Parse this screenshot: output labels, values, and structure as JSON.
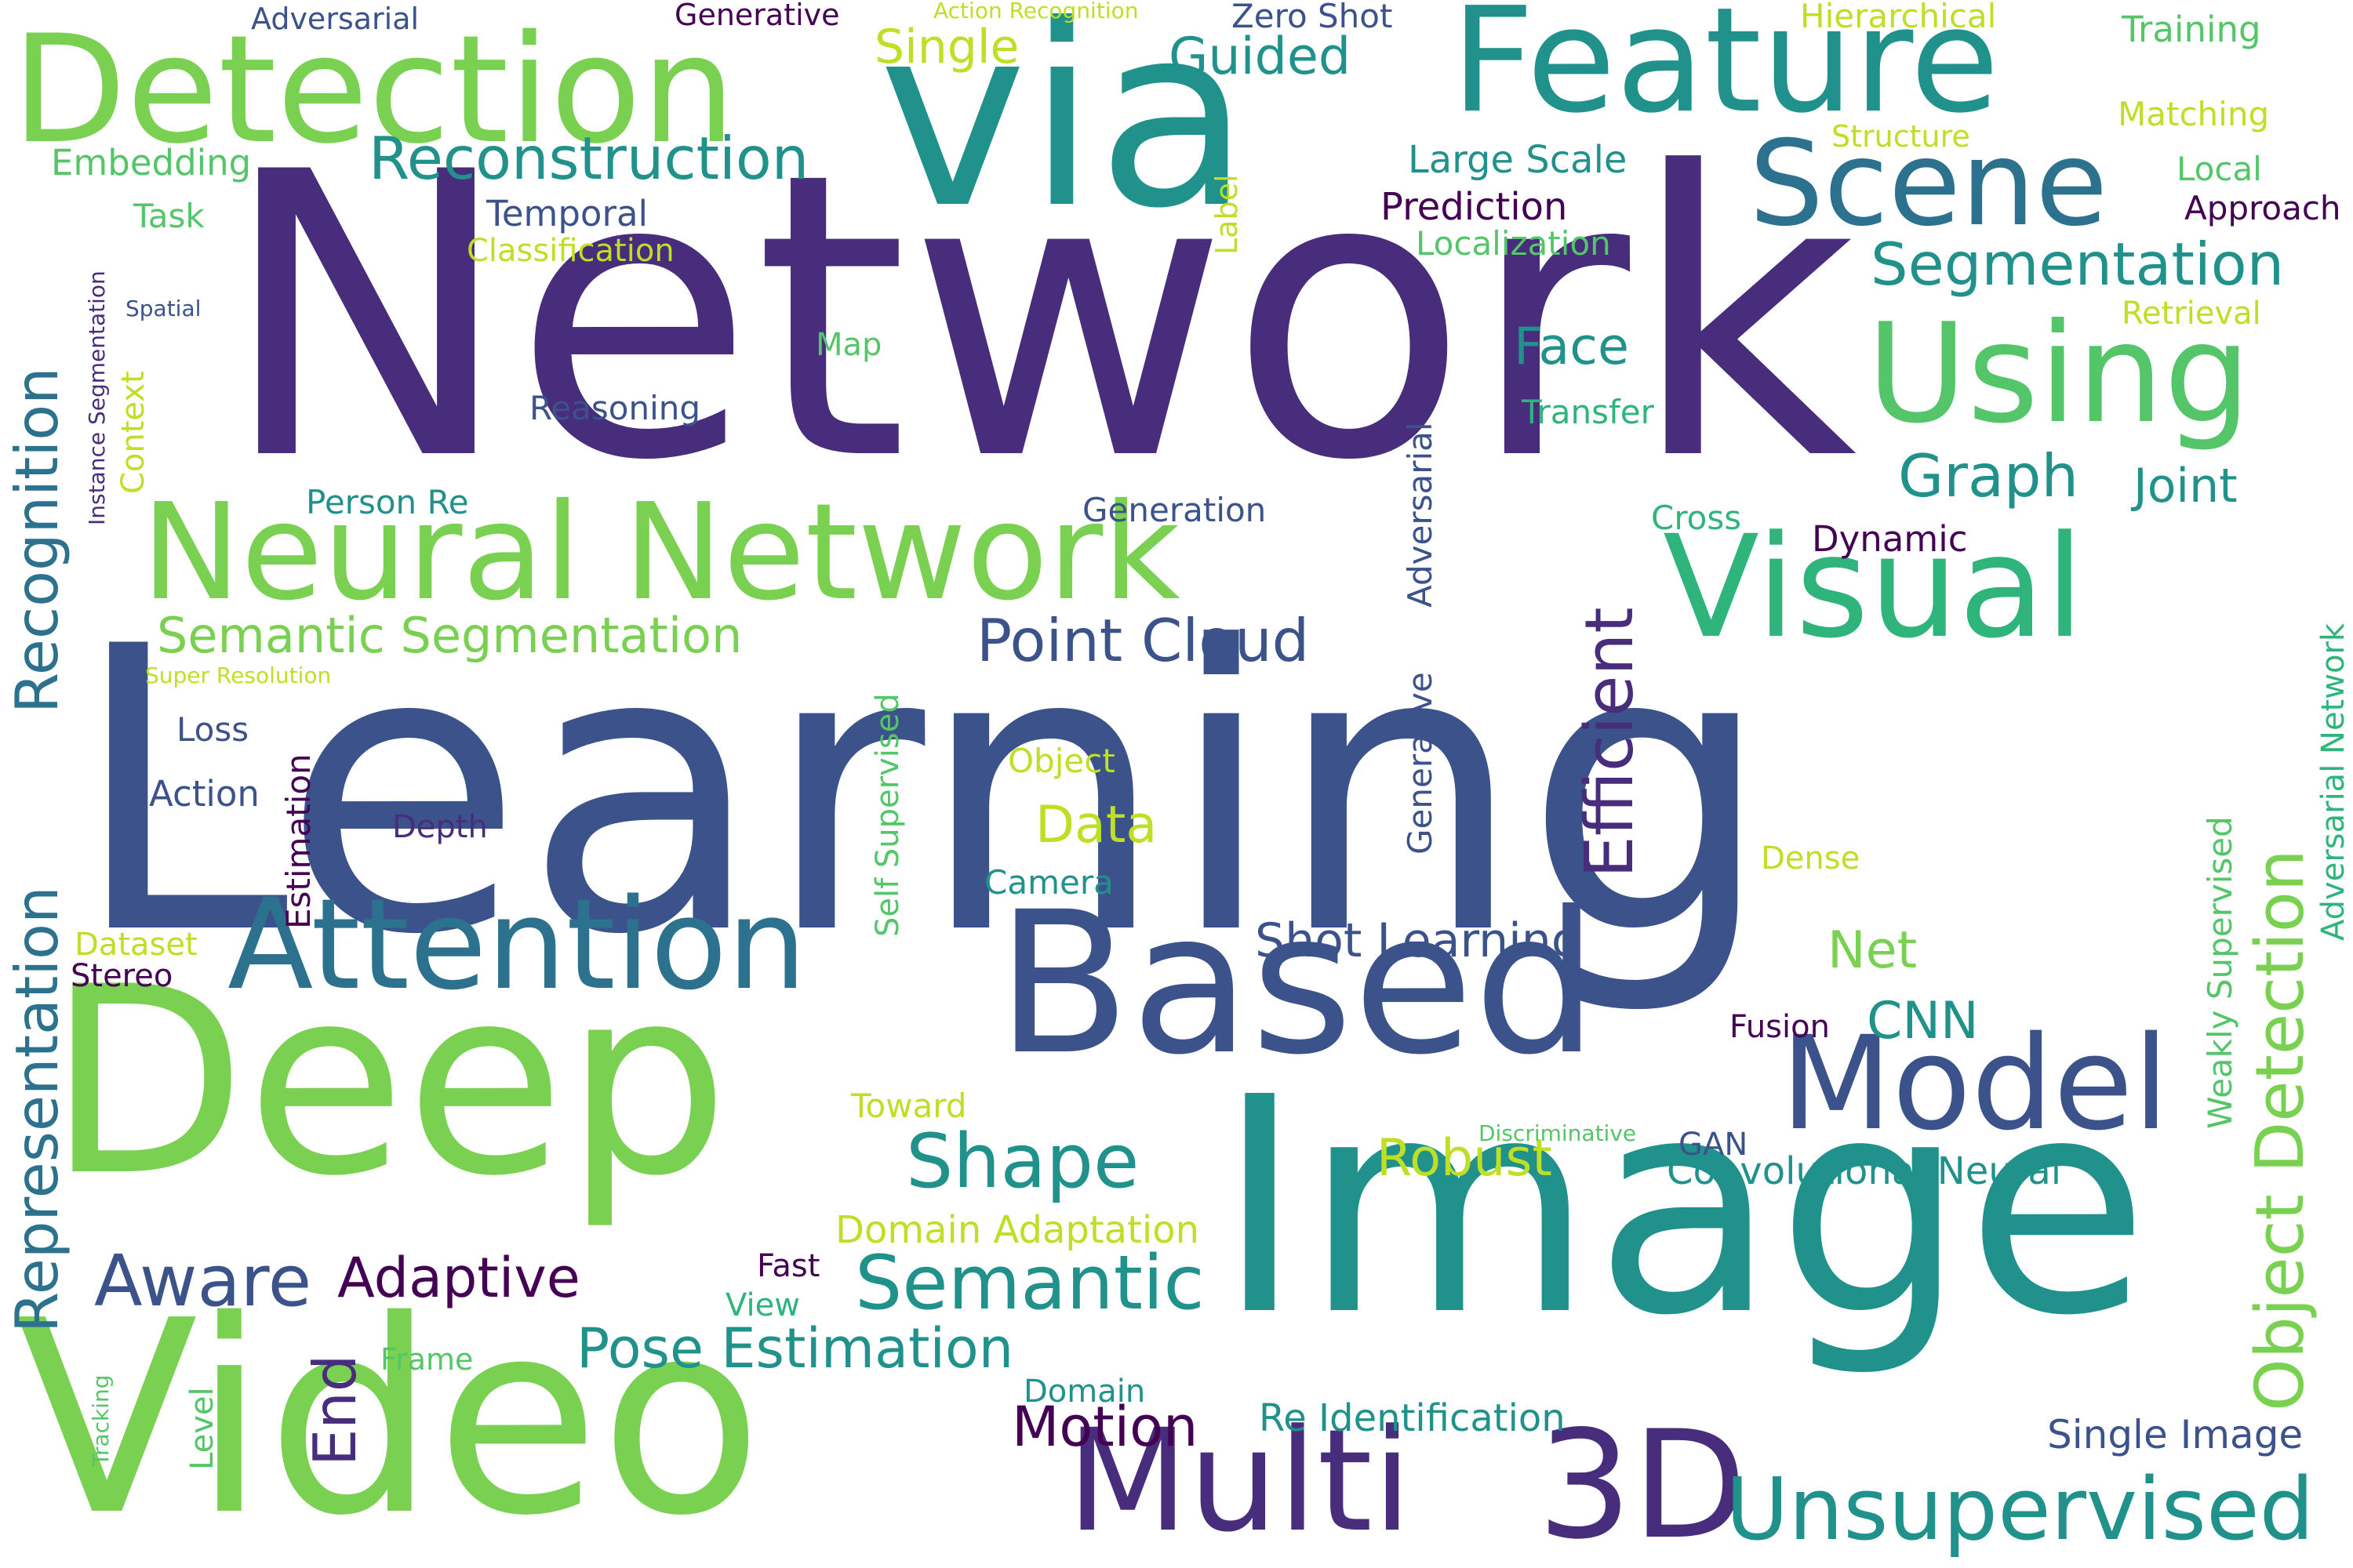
{
  "palette": {
    "lime": "#7ad151",
    "green": "#54c568",
    "teal": "#21918c",
    "blue": "#2c728e",
    "slate": "#3b528b",
    "indigo": "#472d7b",
    "purple": "#440154",
    "yellow": "#bddf26",
    "seafoam": "#2fb47c"
  },
  "words": [
    {
      "id": "network",
      "text": "Network",
      "color": "indigo"
    },
    {
      "id": "learning",
      "text": "Learning",
      "color": "slate"
    },
    {
      "id": "deep",
      "text": "Deep",
      "color": "lime"
    },
    {
      "id": "image",
      "text": "Image",
      "color": "teal"
    },
    {
      "id": "video",
      "text": "Video",
      "color": "lime"
    },
    {
      "id": "via",
      "text": "via",
      "color": "teal"
    },
    {
      "id": "based",
      "text": "Based",
      "color": "slate"
    },
    {
      "id": "detection",
      "text": "Detection",
      "color": "lime"
    },
    {
      "id": "feature",
      "text": "Feature",
      "color": "teal"
    },
    {
      "id": "neural-network",
      "text": "Neural Network",
      "color": "lime"
    },
    {
      "id": "using",
      "text": "Using",
      "color": "green"
    },
    {
      "id": "visual",
      "text": "Visual",
      "color": "seafoam"
    },
    {
      "id": "attention",
      "text": "Attention",
      "color": "blue"
    },
    {
      "id": "model",
      "text": "Model",
      "color": "slate"
    },
    {
      "id": "scene",
      "text": "Scene",
      "color": "blue"
    },
    {
      "id": "multi",
      "text": "Multi",
      "color": "indigo"
    },
    {
      "id": "3d",
      "text": "3D",
      "color": "indigo"
    },
    {
      "id": "unsupervised",
      "text": "Unsupervised",
      "color": "teal"
    },
    {
      "id": "semantic",
      "text": "Semantic",
      "color": "teal"
    },
    {
      "id": "shape",
      "text": "Shape",
      "color": "teal"
    },
    {
      "id": "aware",
      "text": "Aware",
      "color": "slate"
    },
    {
      "id": "adaptive",
      "text": "Adaptive",
      "color": "purple"
    },
    {
      "id": "reconstruction",
      "text": "Reconstruction",
      "color": "teal"
    },
    {
      "id": "segmentation",
      "text": "Segmentation",
      "color": "teal"
    },
    {
      "id": "point-cloud",
      "text": "Point Cloud",
      "color": "slate"
    },
    {
      "id": "pose-estimation",
      "text": "Pose Estimation",
      "color": "teal"
    },
    {
      "id": "motion",
      "text": "Motion",
      "color": "purple"
    },
    {
      "id": "semantic-segmentation",
      "text": "Semantic Segmentation",
      "color": "lime"
    },
    {
      "id": "guided",
      "text": "Guided",
      "color": "teal"
    },
    {
      "id": "graph",
      "text": "Graph",
      "color": "teal"
    },
    {
      "id": "face",
      "text": "Face",
      "color": "teal"
    },
    {
      "id": "joint",
      "text": "Joint",
      "color": "teal"
    },
    {
      "id": "shot-learning",
      "text": "Shot Learning",
      "color": "slate"
    },
    {
      "id": "robust",
      "text": "Robust",
      "color": "yellow"
    },
    {
      "id": "single",
      "text": "Single",
      "color": "yellow"
    },
    {
      "id": "data",
      "text": "Data",
      "color": "yellow"
    },
    {
      "id": "net",
      "text": "Net",
      "color": "lime"
    },
    {
      "id": "cnn",
      "text": "CNN",
      "color": "teal"
    },
    {
      "id": "single-image",
      "text": "Single Image",
      "color": "slate"
    },
    {
      "id": "re-identification",
      "text": "Re Identification",
      "color": "teal"
    },
    {
      "id": "convolutional-neural",
      "text": "Convolutional Neural",
      "color": "teal"
    },
    {
      "id": "domain-adaptation",
      "text": "Domain Adaptation",
      "color": "yellow"
    },
    {
      "id": "large-scale",
      "text": "Large Scale",
      "color": "teal"
    },
    {
      "id": "prediction",
      "text": "Prediction",
      "color": "purple"
    },
    {
      "id": "localization",
      "text": "Localization",
      "color": "green"
    },
    {
      "id": "training",
      "text": "Training",
      "color": "green"
    },
    {
      "id": "matching",
      "text": "Matching",
      "color": "yellow"
    },
    {
      "id": "local",
      "text": "Local",
      "color": "green"
    },
    {
      "id": "approach",
      "text": "Approach",
      "color": "purple"
    },
    {
      "id": "retrieval",
      "text": "Retrieval",
      "color": "yellow"
    },
    {
      "id": "hierarchical",
      "text": "Hierarchical",
      "color": "yellow"
    },
    {
      "id": "structure",
      "text": "Structure",
      "color": "yellow"
    },
    {
      "id": "zero-shot",
      "text": "Zero Shot",
      "color": "slate"
    },
    {
      "id": "generative",
      "text": "Generative",
      "color": "purple"
    },
    {
      "id": "adversarial-top",
      "text": "Adversarial",
      "color": "slate"
    },
    {
      "id": "action-recognition",
      "text": "Action Recognition",
      "color": "yellow"
    },
    {
      "id": "embedding",
      "text": "Embedding",
      "color": "green"
    },
    {
      "id": "task",
      "text": "Task",
      "color": "green"
    },
    {
      "id": "temporal",
      "text": "Temporal",
      "color": "slate"
    },
    {
      "id": "classification",
      "text": "Classification",
      "color": "yellow"
    },
    {
      "id": "spatial",
      "text": "Spatial",
      "color": "slate"
    },
    {
      "id": "map",
      "text": "Map",
      "color": "green"
    },
    {
      "id": "reasoning",
      "text": "Reasoning",
      "color": "slate"
    },
    {
      "id": "transfer",
      "text": "Transfer",
      "color": "seafoam"
    },
    {
      "id": "person-re",
      "text": "Person Re",
      "color": "teal"
    },
    {
      "id": "generation",
      "text": "Generation",
      "color": "slate"
    },
    {
      "id": "cross",
      "text": "Cross",
      "color": "seafoam"
    },
    {
      "id": "dynamic",
      "text": "Dynamic",
      "color": "purple"
    },
    {
      "id": "super-resolution",
      "text": "Super Resolution",
      "color": "yellow"
    },
    {
      "id": "loss",
      "text": "Loss",
      "color": "slate"
    },
    {
      "id": "action",
      "text": "Action",
      "color": "slate"
    },
    {
      "id": "depth",
      "text": "Depth",
      "color": "indigo"
    },
    {
      "id": "object",
      "text": "Object",
      "color": "yellow"
    },
    {
      "id": "camera",
      "text": "Camera",
      "color": "teal"
    },
    {
      "id": "dense",
      "text": "Dense",
      "color": "yellow"
    },
    {
      "id": "dataset",
      "text": "Dataset",
      "color": "yellow"
    },
    {
      "id": "stereo",
      "text": "Stereo",
      "color": "purple"
    },
    {
      "id": "fusion",
      "text": "Fusion",
      "color": "purple"
    },
    {
      "id": "toward",
      "text": "Toward",
      "color": "yellow"
    },
    {
      "id": "discriminative",
      "text": "Discriminative",
      "color": "green"
    },
    {
      "id": "gan",
      "text": "GAN",
      "color": "slate"
    },
    {
      "id": "fast",
      "text": "Fast",
      "color": "purple"
    },
    {
      "id": "view",
      "text": "View",
      "color": "seafoam"
    },
    {
      "id": "frame",
      "text": "Frame",
      "color": "green"
    },
    {
      "id": "domain",
      "text": "Domain",
      "color": "teal"
    },
    {
      "id": "representation",
      "text": "Representation",
      "color": "blue"
    },
    {
      "id": "recognition",
      "text": "Recognition",
      "color": "blue"
    },
    {
      "id": "instance-segmentation",
      "text": "Instance Segmentation",
      "color": "indigo"
    },
    {
      "id": "context",
      "text": "Context",
      "color": "yellow"
    },
    {
      "id": "label",
      "text": "Label",
      "color": "yellow"
    },
    {
      "id": "efficient",
      "text": "Efficient",
      "color": "indigo"
    },
    {
      "id": "adversarial-v",
      "text": "Adversarial",
      "color": "slate"
    },
    {
      "id": "generative-v",
      "text": "Generative",
      "color": "slate"
    },
    {
      "id": "self-supervised",
      "text": "Self Supervised",
      "color": "green"
    },
    {
      "id": "estimation",
      "text": "Estimation",
      "color": "purple"
    },
    {
      "id": "end",
      "text": "End",
      "color": "indigo"
    },
    {
      "id": "level",
      "text": "Level",
      "color": "green"
    },
    {
      "id": "tracking",
      "text": "Tracking",
      "color": "green"
    },
    {
      "id": "object-detection",
      "text": "Object Detection",
      "color": "lime"
    },
    {
      "id": "weakly-supervised",
      "text": "Weakly Supervised",
      "color": "green"
    },
    {
      "id": "adversarial-network",
      "text": "Adversarial Network",
      "color": "seafoam"
    }
  ]
}
